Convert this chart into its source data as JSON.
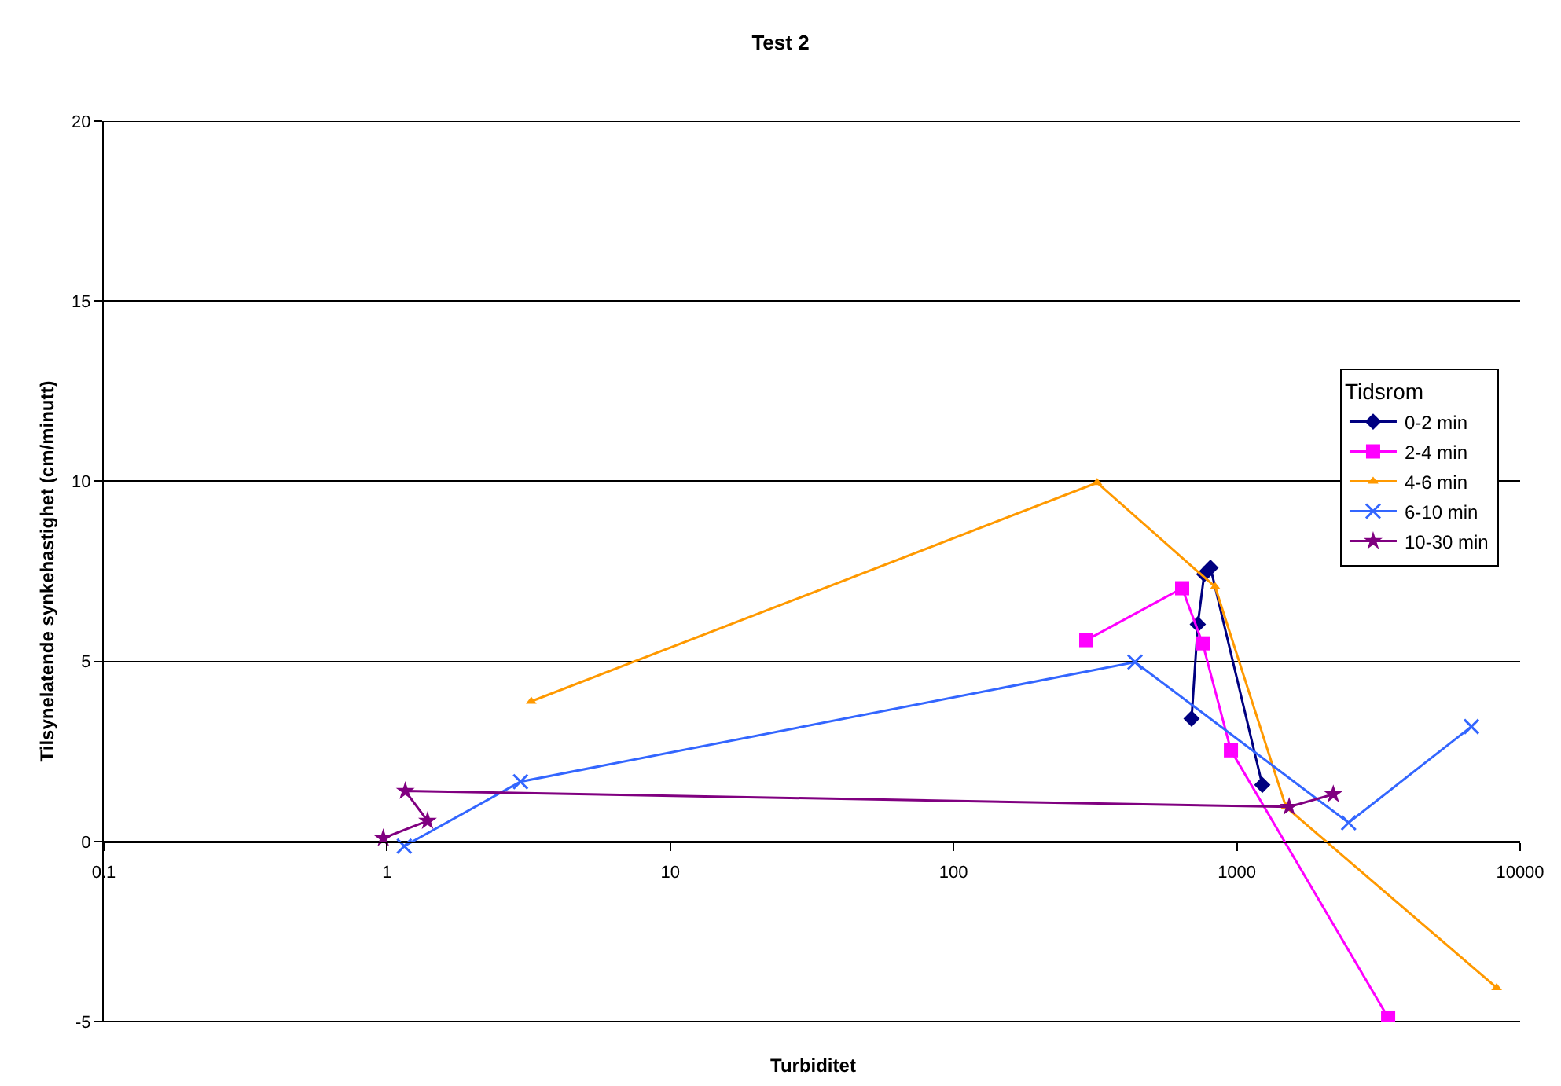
{
  "chart_data": {
    "type": "line",
    "title": "Test 2",
    "xlabel": "Turbiditet",
    "ylabel": "Tilsynelatende synkehastighet (cm/minutt)",
    "legend_title": "Tidsrom",
    "log": "x",
    "xlim": [
      0.1,
      10000
    ],
    "xticks": [
      0.1,
      1,
      10,
      100,
      1000,
      10000
    ],
    "ylim": [
      -5,
      20
    ],
    "yticks": [
      -5,
      0,
      5,
      10,
      15,
      20
    ],
    "grid": "y",
    "legend": "right",
    "series": [
      {
        "name": "0-2 min",
        "color": "#000080",
        "marker": "diamond",
        "x": [
          692,
          728,
          767,
          807,
          1230
        ],
        "values": [
          3.41,
          6.03,
          7.42,
          7.6,
          1.57
        ]
      },
      {
        "name": "2-4 min",
        "color": "#ff00ff",
        "marker": "square",
        "x": [
          294,
          641,
          757,
          953,
          3420
        ],
        "values": [
          5.59,
          7.03,
          5.5,
          2.53,
          -4.89
        ]
      },
      {
        "name": "4-6 min",
        "color": "#ff9900",
        "marker": "triangle",
        "x": [
          3.23,
          321,
          838,
          1490,
          8260
        ],
        "values": [
          3.89,
          9.96,
          7.07,
          0.96,
          -4.06
        ]
      },
      {
        "name": "6-10 min",
        "color": "#3366ff",
        "marker": "cross",
        "x": [
          1.15,
          2.96,
          437,
          2480,
          6730
        ],
        "values": [
          -0.13,
          1.66,
          4.98,
          0.52,
          3.19
        ]
      },
      {
        "name": "10-30 min",
        "color": "#800080",
        "marker": "star",
        "x": [
          0.97,
          1.39,
          1.16,
          1530,
          2190
        ],
        "values": [
          0.09,
          0.57,
          1.4,
          0.96,
          1.31
        ]
      }
    ]
  }
}
